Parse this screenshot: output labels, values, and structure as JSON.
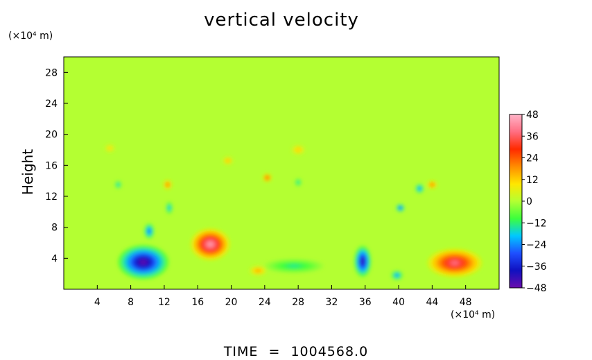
{
  "chart_data": {
    "type": "heatmap",
    "title": "vertical velocity",
    "ylabel": "Height",
    "xlabel": "",
    "x_unit": "(×10⁴ m)",
    "y_unit": "(×10⁴ m)",
    "xlim": [
      0,
      52
    ],
    "ylim": [
      0,
      30
    ],
    "x_ticks": [
      4,
      8,
      12,
      16,
      20,
      24,
      28,
      32,
      36,
      40,
      44,
      48
    ],
    "y_ticks": [
      4,
      8,
      12,
      16,
      20,
      24,
      28
    ],
    "colorbar": {
      "ticks": [
        48,
        36,
        24,
        12,
        0,
        -12,
        -24,
        -36,
        -48
      ],
      "range": [
        -48,
        48
      ],
      "colors": [
        "#6a0dad",
        "#1010c0",
        "#1e50ff",
        "#00c8ff",
        "#3cff3c",
        "#b4ff32",
        "#ffe600",
        "#ff8c00",
        "#ff2a00",
        "#ff6e82",
        "#ffb4c8"
      ]
    },
    "background_value": 0,
    "features": [
      {
        "x": 9.5,
        "y": 3.5,
        "rx": 3.0,
        "ry": 2.2,
        "value": -46
      },
      {
        "x": 10.2,
        "y": 7.5,
        "rx": 0.6,
        "ry": 1.0,
        "value": -30
      },
      {
        "x": 12.6,
        "y": 10.5,
        "rx": 0.4,
        "ry": 0.8,
        "value": -22
      },
      {
        "x": 17.5,
        "y": 5.8,
        "rx": 2.3,
        "ry": 2.0,
        "value": 44
      },
      {
        "x": 23.2,
        "y": 2.4,
        "rx": 1.0,
        "ry": 0.6,
        "value": 18
      },
      {
        "x": 27.5,
        "y": 3.0,
        "rx": 3.5,
        "ry": 0.9,
        "value": -14
      },
      {
        "x": 35.7,
        "y": 3.6,
        "rx": 1.0,
        "ry": 2.0,
        "value": -42
      },
      {
        "x": 39.8,
        "y": 1.8,
        "rx": 0.7,
        "ry": 0.6,
        "value": -26
      },
      {
        "x": 46.7,
        "y": 3.4,
        "rx": 3.2,
        "ry": 1.8,
        "value": 38
      },
      {
        "x": 24.3,
        "y": 14.4,
        "rx": 0.5,
        "ry": 0.5,
        "value": 30
      },
      {
        "x": 12.4,
        "y": 13.5,
        "rx": 0.5,
        "ry": 0.6,
        "value": 24
      },
      {
        "x": 40.2,
        "y": 10.5,
        "rx": 0.5,
        "ry": 0.5,
        "value": -34
      },
      {
        "x": 42.5,
        "y": 13.0,
        "rx": 0.5,
        "ry": 0.6,
        "value": -28
      },
      {
        "x": 6.5,
        "y": 13.5,
        "rx": 0.4,
        "ry": 0.5,
        "value": -20
      },
      {
        "x": 28.0,
        "y": 13.8,
        "rx": 0.4,
        "ry": 0.5,
        "value": -18
      },
      {
        "x": 19.6,
        "y": 16.6,
        "rx": 0.6,
        "ry": 0.5,
        "value": 16
      },
      {
        "x": 28.0,
        "y": 18.0,
        "rx": 0.8,
        "ry": 0.6,
        "value": 14
      },
      {
        "x": 44.0,
        "y": 13.5,
        "rx": 0.6,
        "ry": 0.5,
        "value": 24
      },
      {
        "x": 5.5,
        "y": 18.2,
        "rx": 0.6,
        "ry": 0.5,
        "value": 12
      }
    ]
  },
  "footer": {
    "time_label": "TIME",
    "equals": "=",
    "time_value": "1004568.0"
  }
}
